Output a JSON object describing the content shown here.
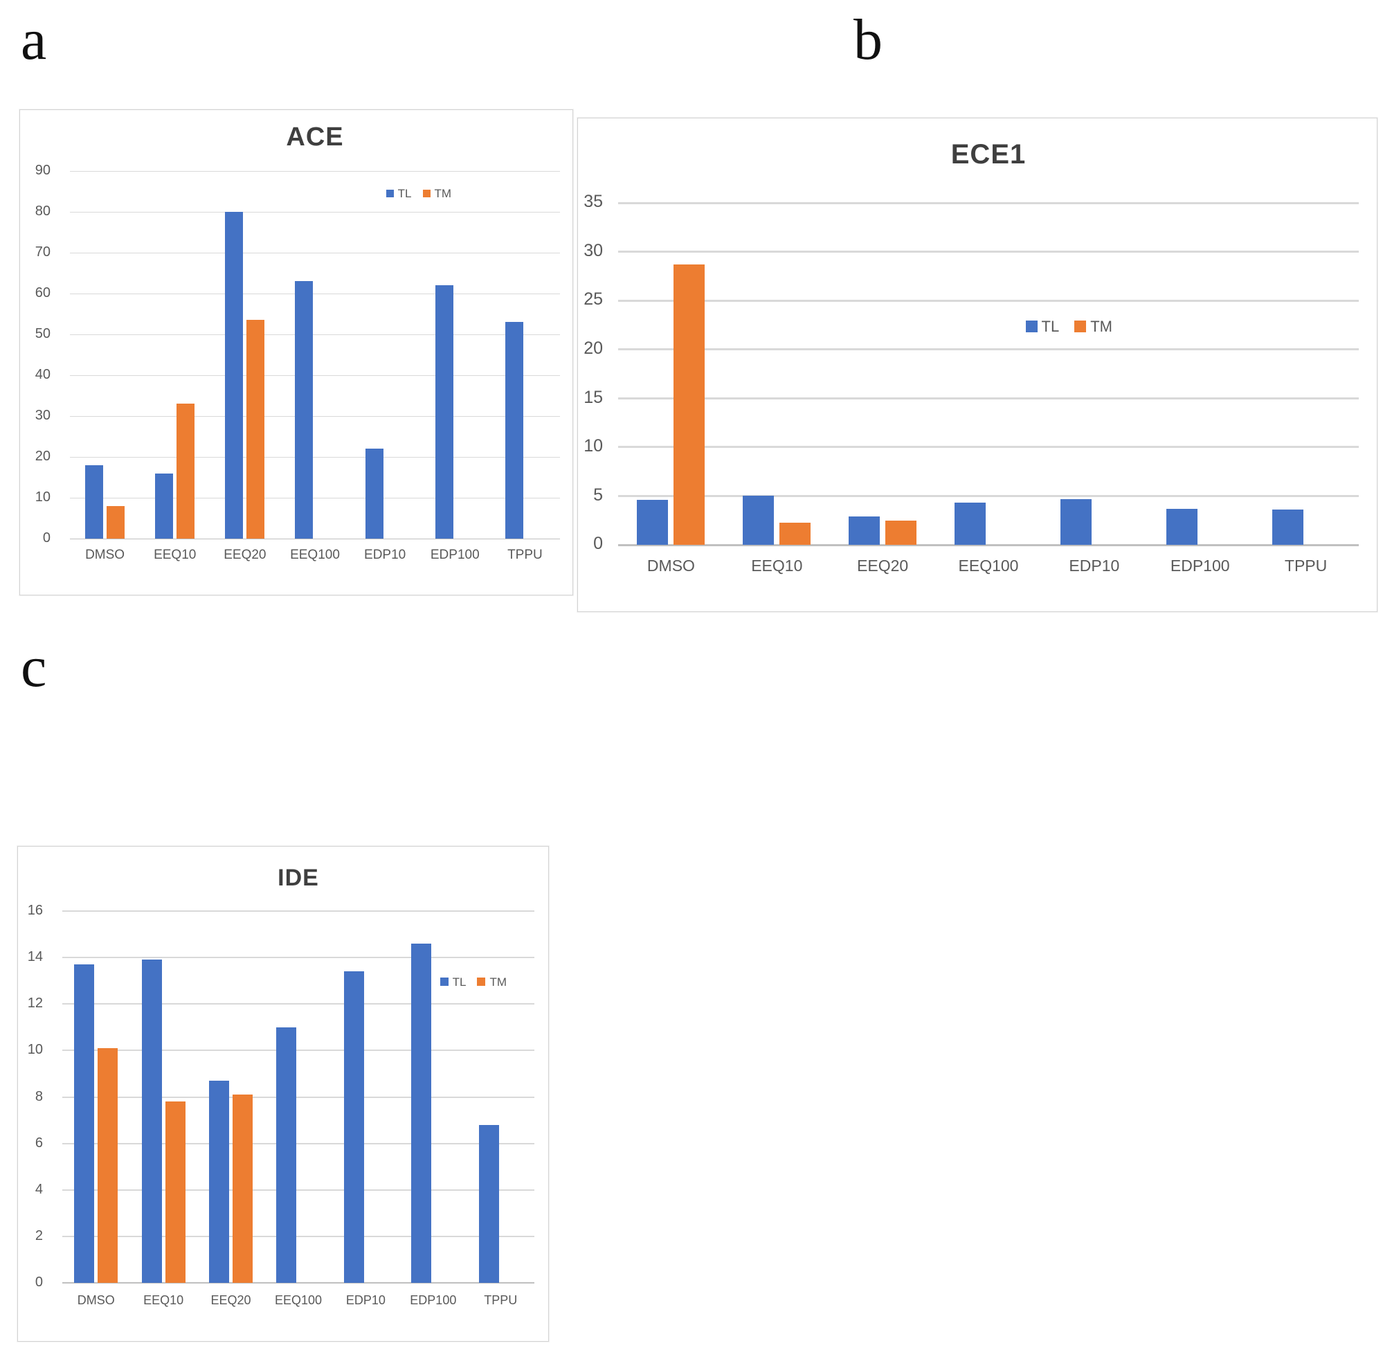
{
  "panels": [
    {
      "letter": "a"
    },
    {
      "letter": "b"
    },
    {
      "letter": "c"
    }
  ],
  "chart_data": [
    {
      "id": "ace",
      "panel": "a",
      "type": "bar",
      "title": "ACE",
      "categories": [
        "DMSO",
        "EEQ10",
        "EEQ20",
        "EEQ100",
        "EDP10",
        "EDP100",
        "TPPU"
      ],
      "series": [
        {
          "name": "TL",
          "color": "#4472C4",
          "values": [
            18,
            16,
            80,
            63,
            22,
            62,
            53
          ]
        },
        {
          "name": "TM",
          "color": "#ED7D31",
          "values": [
            8,
            33,
            53.5,
            0,
            0,
            0,
            0
          ]
        }
      ],
      "ylim": [
        0,
        90
      ],
      "ytick_step": 10,
      "yticks": [
        0,
        10,
        20,
        30,
        40,
        50,
        60,
        70,
        80,
        90
      ],
      "xlabel": "",
      "ylabel": "",
      "grid": true,
      "legend_position": "inside-top-right"
    },
    {
      "id": "ece1",
      "panel": "b",
      "type": "bar",
      "title": "ECE1",
      "categories": [
        "DMSO",
        "EEQ10",
        "EEQ20",
        "EEQ100",
        "EDP10",
        "EDP100",
        "TPPU"
      ],
      "series": [
        {
          "name": "TL",
          "color": "#4472C4",
          "values": [
            4.6,
            5,
            2.9,
            4.3,
            4.7,
            3.7,
            3.6
          ]
        },
        {
          "name": "TM",
          "color": "#ED7D31",
          "values": [
            28.7,
            2.3,
            2.5,
            0,
            0,
            0,
            0
          ]
        }
      ],
      "ylim": [
        0,
        35
      ],
      "ytick_step": 5,
      "yticks": [
        0,
        5,
        10,
        15,
        20,
        25,
        30,
        35
      ],
      "xlabel": "",
      "ylabel": "",
      "grid": true,
      "legend_position": "inside-middle"
    },
    {
      "id": "ide",
      "panel": "c",
      "type": "bar",
      "title": "IDE",
      "categories": [
        "DMSO",
        "EEQ10",
        "EEQ20",
        "EEQ100",
        "EDP10",
        "EDP100",
        "TPPU"
      ],
      "series": [
        {
          "name": "TL",
          "color": "#4472C4",
          "values": [
            13.7,
            13.9,
            8.7,
            11,
            13.4,
            14.6,
            6.8
          ]
        },
        {
          "name": "TM",
          "color": "#ED7D31",
          "values": [
            10.1,
            7.8,
            8.1,
            0,
            0,
            0,
            0
          ]
        }
      ],
      "ylim": [
        0,
        16
      ],
      "ytick_step": 2,
      "yticks": [
        0,
        2,
        4,
        6,
        8,
        10,
        12,
        14,
        16
      ],
      "xlabel": "",
      "ylabel": "",
      "grid": true,
      "legend_position": "inside-right"
    }
  ]
}
